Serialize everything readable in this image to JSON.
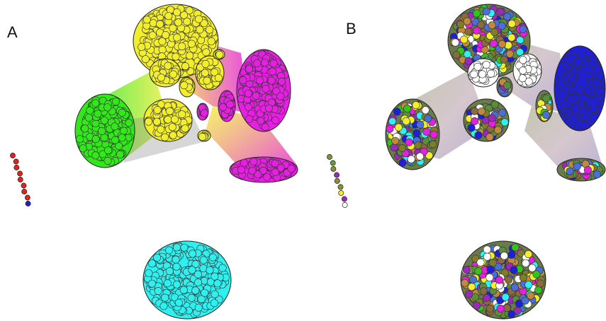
{
  "panels": [
    {
      "label": "A",
      "coloring": "by-cluster"
    },
    {
      "label": "B",
      "coloring": "by-attribute"
    }
  ],
  "colors": {
    "yellow": "#f2ee2c",
    "magenta": "#e520e0",
    "green": "#33e81a",
    "cyan": "#2ff0ef",
    "red": "#e0231c",
    "blue": "#1f1fd8",
    "mix_palette": [
      "#f2ee2c",
      "#1f1fd8",
      "#33c41a",
      "#9a2bb8",
      "#8b6a3c",
      "#2ff0ef",
      "#e520e0",
      "#5a8f3a",
      "#c08a3a",
      "#ffffff",
      "#7d7d2a",
      "#4a6fd8"
    ]
  },
  "small_chain_a": [
    "red",
    "red",
    "red",
    "red",
    "red",
    "red",
    "red",
    "red",
    "blue"
  ],
  "small_chain_b": [
    "olive",
    "green",
    "olive",
    "purple",
    "olive",
    "olive",
    "yellow",
    "purple",
    "white"
  ]
}
